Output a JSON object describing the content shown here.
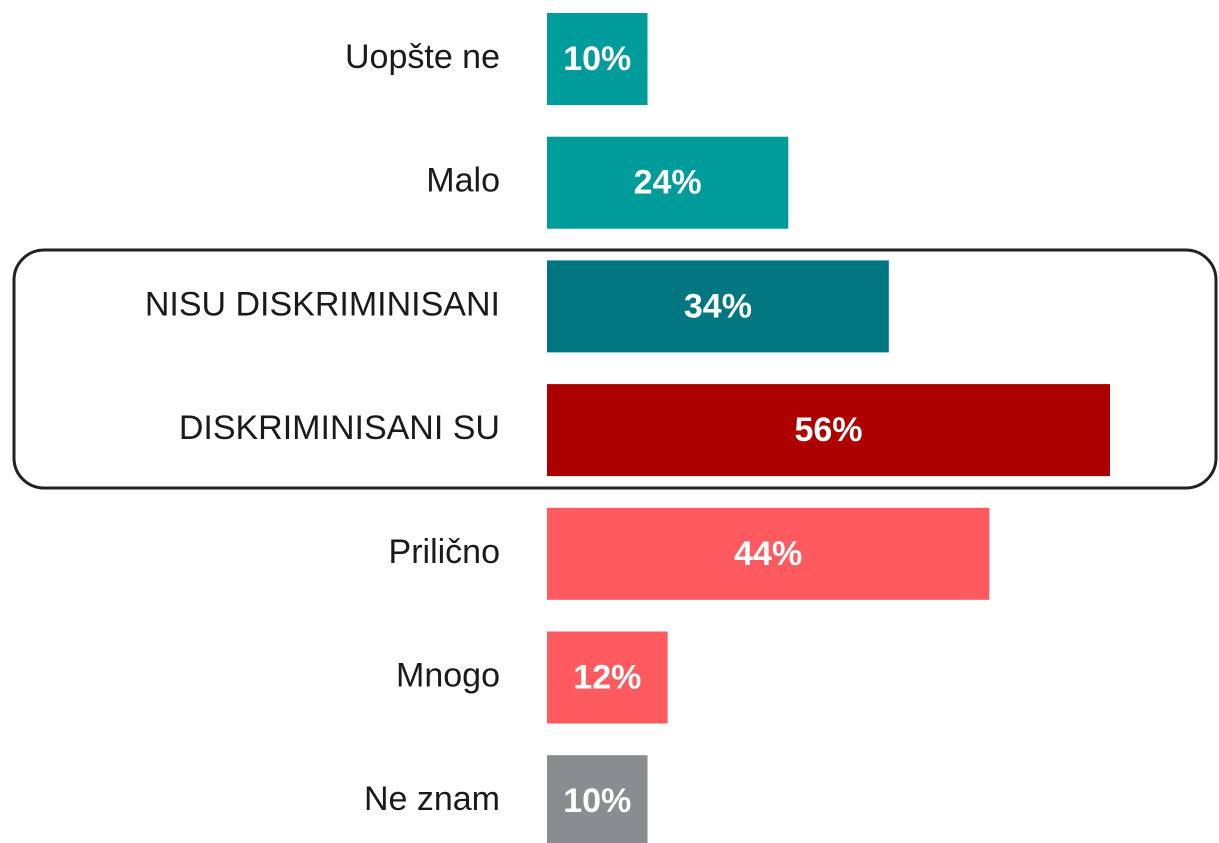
{
  "chart_data": {
    "type": "bar",
    "orientation": "horizontal",
    "categories": [
      "Uopšte ne",
      "Malo",
      "NISU DISKRIMINISANI",
      "DISKRIMINISANI SU",
      "Prilično",
      "Mnogo",
      "Ne znam"
    ],
    "values": [
      10,
      24,
      34,
      56,
      44,
      12,
      10
    ],
    "value_labels": [
      "10%",
      "24%",
      "34%",
      "56%",
      "44%",
      "12%",
      "10%"
    ],
    "colors": [
      "#009b9b",
      "#009b9b",
      "#007780",
      "#ad0000",
      "#ff5a5f",
      "#ff5a5f",
      "#8a8c8f"
    ]
  }
}
